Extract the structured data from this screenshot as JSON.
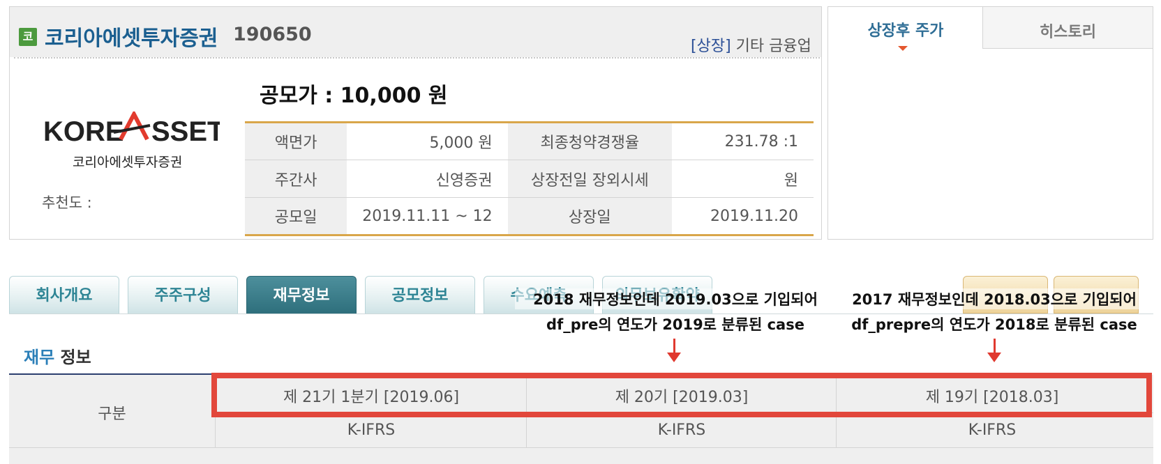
{
  "company": {
    "badge": "코",
    "name": "코리아에셋투자증권",
    "code": "190650",
    "sector_tag": "[상장]",
    "sector": "기타 금융업",
    "logo_text": "KOREASSET",
    "logo_sub": "코리아에셋투자증권",
    "recommend_label": "추천도 :",
    "offer_price": "공모가 : 10,000 원"
  },
  "info_table": [
    [
      "액면가",
      "5,000 원",
      "최종청약경쟁율",
      "231.78 :1"
    ],
    [
      "주간사",
      "신영증권",
      "상장전일 장외시세",
      "원"
    ],
    [
      "공모일",
      "2019.11.11 ~ 12",
      "상장일",
      "2019.11.20"
    ]
  ],
  "side_tabs": [
    "상장후 주가",
    "히스토리"
  ],
  "tabs": [
    "회사개요",
    "주주구성",
    "재무정보",
    "공모정보",
    "수요예측",
    "의무보유확약"
  ],
  "annotations": {
    "left": [
      "2018 재무정보인데 2019.03으로 기입되어",
      "df_pre의 연도가 2019로 분류된 case"
    ],
    "right": [
      "2017 재무정보인데 2018.03으로 기입되어",
      "df_prepre의 연도가 2018로 분류된 case"
    ]
  },
  "financial": {
    "title_highlight": "재무",
    "title_rest": " 정보",
    "row_label": "구분",
    "periods": [
      "제 21기 1분기 [2019.06]",
      "제 20기 [2019.03]",
      "제 19기 [2018.03]"
    ],
    "standards": [
      "K-IFRS",
      "K-IFRS",
      "K-IFRS"
    ]
  },
  "colors": {
    "accent": "#e2473b",
    "brand": "#1b5f90",
    "tab": "#2d8494"
  }
}
